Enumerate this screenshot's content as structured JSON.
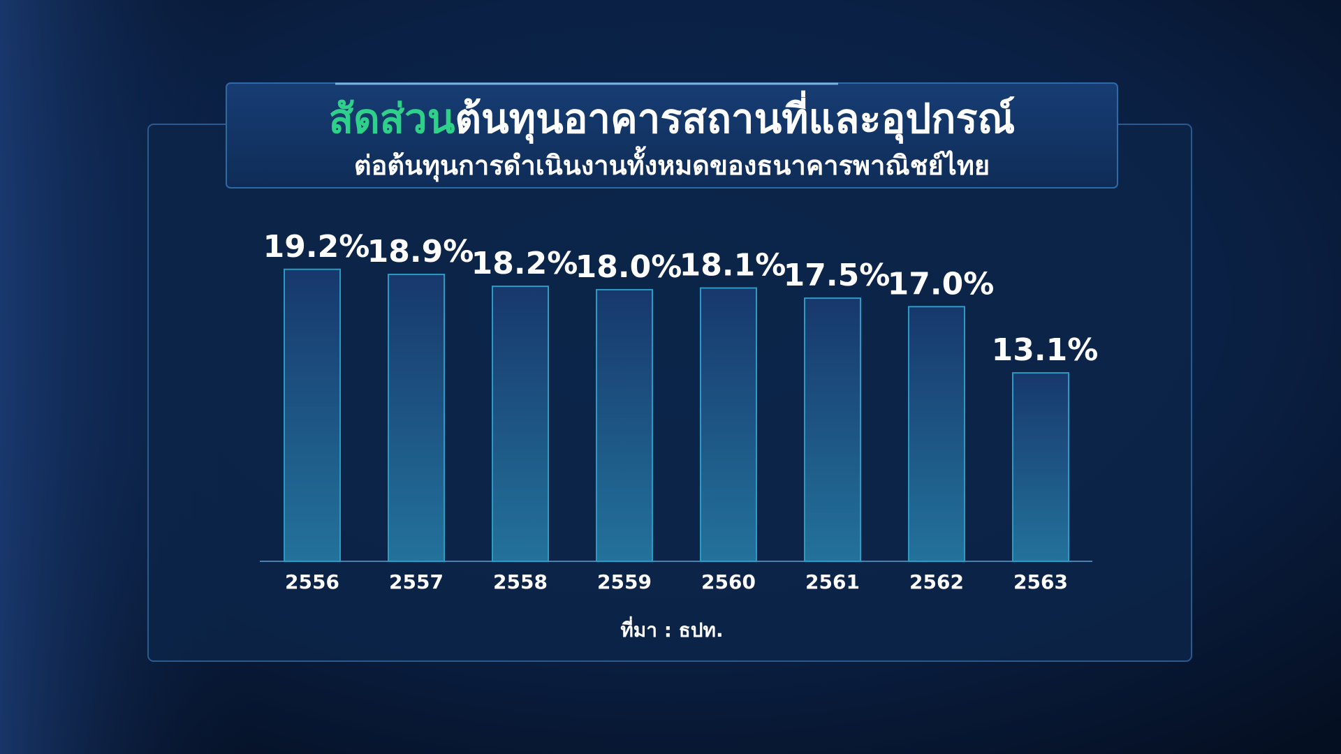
{
  "chart_data": {
    "type": "bar",
    "title_parts": [
      "สัดส่วน",
      "ต้นทุนอาคารสถานที่และอุปกรณ์"
    ],
    "subtitle": "ต่อต้นทุนการดำเนินงานทั้งหมดของธนาคารพาณิชย์ไทย",
    "categories": [
      "2556",
      "2557",
      "2558",
      "2559",
      "2560",
      "2561",
      "2562",
      "2563"
    ],
    "values": [
      19.2,
      18.9,
      18.2,
      18.0,
      18.1,
      17.5,
      17.0,
      13.1
    ],
    "value_labels": [
      "19.2%",
      "18.9%",
      "18.2%",
      "18.0%",
      "18.1%",
      "17.5%",
      "17.0%",
      "13.1%"
    ],
    "ylim": [
      2,
      21
    ],
    "source": "ที่มา : ธปท."
  }
}
